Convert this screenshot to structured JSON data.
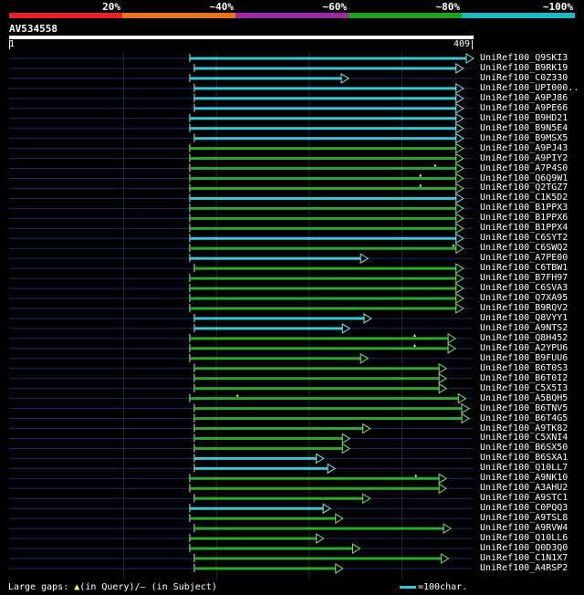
{
  "scale": {
    "labels": [
      "20%",
      "~40%",
      "~60%",
      "~80%",
      "~100%"
    ],
    "colors": [
      "#e8202c",
      "#e6731c",
      "#9b2aa0",
      "#1fa21f",
      "#1fb8c0"
    ]
  },
  "query": {
    "name": "AV534558",
    "start": "1",
    "end": "409"
  },
  "colors": {
    "cyan": "#3bc6d6",
    "green": "#2ea72e",
    "navy": "#1b2a6b",
    "arrow_green": "#7be37b",
    "arrow_cyan": "#7fe6ee",
    "grid": "#2a2a2a",
    "gap": "#ffff66"
  },
  "hits": [
    {
      "label": "UniRef100_Q9SKI3",
      "color": "cyan",
      "start": 160,
      "end": 409,
      "tail": true
    },
    {
      "label": "UniRef100_B9RK19",
      "color": "cyan",
      "start": 164,
      "end": 400,
      "tail": true
    },
    {
      "label": "UniRef100_C0Z330",
      "color": "cyan",
      "start": 160,
      "end": 299,
      "tail": true
    },
    {
      "label": "UniRef100_UPI000..",
      "color": "cyan",
      "start": 164,
      "end": 400,
      "tail": true
    },
    {
      "label": "UniRef100_A9PJ86",
      "color": "cyan",
      "start": 164,
      "end": 400,
      "tail": true
    },
    {
      "label": "UniRef100_A9PE66",
      "color": "cyan",
      "start": 164,
      "end": 400,
      "tail": true
    },
    {
      "label": "UniRef100_B9HD21",
      "color": "cyan",
      "start": 160,
      "end": 400,
      "tail": true
    },
    {
      "label": "UniRef100_B9N5E4",
      "color": "cyan",
      "start": 160,
      "end": 400,
      "tail": true
    },
    {
      "label": "UniRef100_B9MSX5",
      "color": "cyan",
      "start": 164,
      "end": 400,
      "tail": true
    },
    {
      "label": "UniRef100_A9PJ43",
      "color": "green",
      "start": 160,
      "end": 400,
      "tail": true
    },
    {
      "label": "UniRef100_A9PIY2",
      "color": "green",
      "start": 160,
      "end": 400,
      "tail": true
    },
    {
      "label": "UniRef100_A7P4S0",
      "color": "green",
      "start": 160,
      "end": 400,
      "tail": true,
      "gaps": [
        376
      ]
    },
    {
      "label": "UniRef100_Q6Q9W1",
      "color": "green",
      "start": 160,
      "end": 400,
      "tail": true,
      "gaps": [
        363
      ]
    },
    {
      "label": "UniRef100_Q2TGZ7",
      "color": "green",
      "start": 160,
      "end": 400,
      "tail": true,
      "gaps": [
        363
      ]
    },
    {
      "label": "UniRef100_C1K5D2",
      "color": "cyan",
      "start": 160,
      "end": 400,
      "tail": true
    },
    {
      "label": "UniRef100_B1PPX3",
      "color": "green",
      "start": 160,
      "end": 400,
      "tail": true
    },
    {
      "label": "UniRef100_B1PPX6",
      "color": "green",
      "start": 160,
      "end": 400,
      "tail": true
    },
    {
      "label": "UniRef100_B1PPX4",
      "color": "green",
      "start": 160,
      "end": 400,
      "tail": true
    },
    {
      "label": "UniRef100_C6SYT2",
      "color": "cyan",
      "start": 160,
      "end": 400,
      "tail": true
    },
    {
      "label": "UniRef100_C6SWQ2",
      "color": "green",
      "start": 160,
      "end": 400,
      "tail": true,
      "gaps": [
        392
      ]
    },
    {
      "label": "UniRef100_A7PE00",
      "color": "cyan",
      "start": 160,
      "end": 316,
      "tail": true
    },
    {
      "label": "UniRef100_C6TBW1",
      "color": "green",
      "start": 164,
      "end": 400,
      "tail": true
    },
    {
      "label": "UniRef100_B7FH97",
      "color": "green",
      "start": 160,
      "end": 400,
      "tail": true
    },
    {
      "label": "UniRef100_C6SVA3",
      "color": "green",
      "start": 160,
      "end": 400,
      "tail": true
    },
    {
      "label": "UniRef100_Q7XA95",
      "color": "green",
      "start": 160,
      "end": 400,
      "tail": true
    },
    {
      "label": "UniRef100_B9RQV2",
      "color": "green",
      "start": 160,
      "end": 400,
      "tail": true
    },
    {
      "label": "UniRef100_Q8VYY1",
      "color": "cyan",
      "start": 164,
      "end": 319,
      "tail": true
    },
    {
      "label": "UniRef100_A9NTS2",
      "color": "cyan",
      "start": 164,
      "end": 300,
      "tail": true
    },
    {
      "label": "UniRef100_Q8H452",
      "color": "green",
      "start": 160,
      "end": 393,
      "tail": true,
      "gaps": [
        358
      ]
    },
    {
      "label": "UniRef100_A2YPU6",
      "color": "green",
      "start": 160,
      "end": 393,
      "tail": true,
      "gaps": [
        358
      ]
    },
    {
      "label": "UniRef100_B9FUU6",
      "color": "green",
      "start": 160,
      "end": 316,
      "tail": true
    },
    {
      "label": "UniRef100_B6T0S3",
      "color": "green",
      "start": 164,
      "end": 385,
      "tail": true
    },
    {
      "label": "UniRef100_B6T0I2",
      "color": "green",
      "start": 164,
      "end": 385,
      "tail": true
    },
    {
      "label": "UniRef100_C5X5I3",
      "color": "green",
      "start": 164,
      "end": 385,
      "tail": true
    },
    {
      "label": "UniRef100_A5BQH5",
      "color": "green",
      "start": 160,
      "end": 402,
      "tail": true,
      "gaps": [
        202
      ]
    },
    {
      "label": "UniRef100_B6TNV5",
      "color": "green",
      "start": 164,
      "end": 405,
      "tail": true
    },
    {
      "label": "UniRef100_B6T4G5",
      "color": "green",
      "start": 164,
      "end": 405,
      "tail": true
    },
    {
      "label": "UniRef100_A9TK82",
      "color": "green",
      "start": 164,
      "end": 318,
      "tail": true
    },
    {
      "label": "UniRef100_C5XNI4",
      "color": "green",
      "start": 164,
      "end": 300,
      "tail": true
    },
    {
      "label": "UniRef100_B6SX50",
      "color": "green",
      "start": 164,
      "end": 300,
      "tail": true
    },
    {
      "label": "UniRef100_B6SXA1",
      "color": "cyan",
      "start": 164,
      "end": 277,
      "tail": true
    },
    {
      "label": "UniRef100_Q10LL7",
      "color": "cyan",
      "start": 164,
      "end": 287,
      "tail": true
    },
    {
      "label": "UniRef100_A9NK10",
      "color": "green",
      "start": 160,
      "end": 385,
      "tail": true,
      "gaps": [
        359
      ]
    },
    {
      "label": "UniRef100_A3AHU2",
      "color": "green",
      "start": 160,
      "end": 385,
      "tail": true
    },
    {
      "label": "UniRef100_A9STC1",
      "color": "green",
      "start": 164,
      "end": 318,
      "tail": true
    },
    {
      "label": "UniRef100_C0PQQ3",
      "color": "cyan",
      "start": 160,
      "end": 283,
      "tail": true
    },
    {
      "label": "UniRef100_A9TSL8",
      "color": "green",
      "start": 160,
      "end": 294,
      "tail": true
    },
    {
      "label": "UniRef100_A9RVW4",
      "color": "green",
      "start": 164,
      "end": 389,
      "tail": true
    },
    {
      "label": "UniRef100_Q10LL6",
      "color": "green",
      "start": 160,
      "end": 277,
      "tail": true
    },
    {
      "label": "UniRef100_Q0D3Q0",
      "color": "green",
      "start": 160,
      "end": 309,
      "tail": true
    },
    {
      "label": "UniRef100_C1N1X7",
      "color": "green",
      "start": 164,
      "end": 387,
      "tail": true
    },
    {
      "label": "UniRef100_A4RSP2",
      "color": "green",
      "start": 164,
      "end": 294,
      "tail": true
    }
  ],
  "legend": {
    "gaps_label": "Large gaps:",
    "in_query": "(in Query)/",
    "in_subject": "(in Subject)",
    "scale_label": "=100char."
  }
}
